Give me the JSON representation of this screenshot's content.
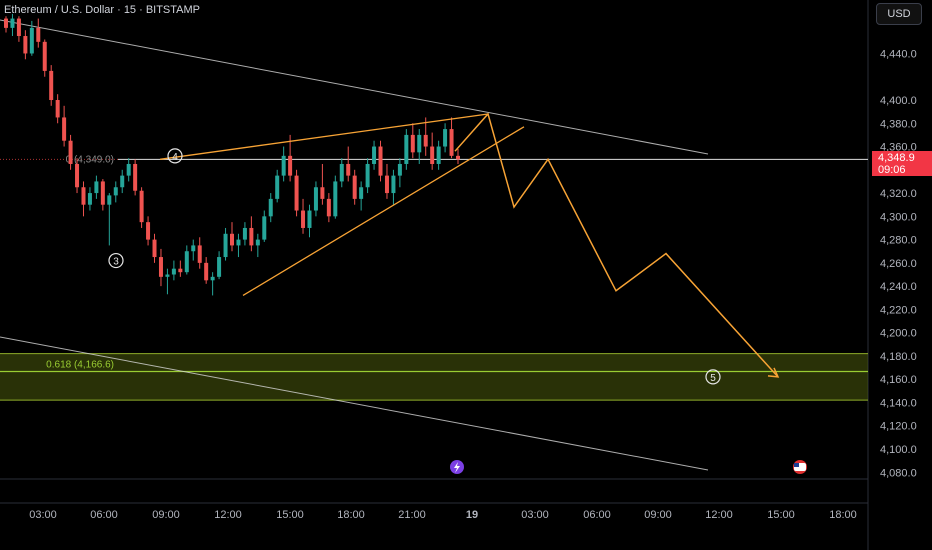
{
  "header": {
    "title": "Ethereum / U.S. Dollar · 15 · BITSTAMP",
    "currency_button": "USD"
  },
  "price_badge": {
    "price": "4,348.9",
    "countdown": "09:06"
  },
  "colors": {
    "up": "#26a69a",
    "down": "#ef5350",
    "projection": "#f7a335",
    "zone": "#5b6b12",
    "zone_line": "#9acd32",
    "trendline": "#d8d8d8",
    "badge": "#f23645"
  },
  "chart_data": {
    "type": "candlestick",
    "symbol": "Ethereum / U.S. Dollar",
    "interval": "15",
    "exchange": "BITSTAMP",
    "ylim": [
      4073,
      4475
    ],
    "y_ticks": [
      4080.0,
      4100.0,
      4120.0,
      4140.0,
      4160.0,
      4180.0,
      4200.0,
      4220.0,
      4240.0,
      4260.0,
      4280.0,
      4300.0,
      4320.0,
      4340.0,
      4360.0,
      4380.0,
      4400.0,
      4440.0
    ],
    "x_ticks": [
      "03:00",
      "06:00",
      "09:00",
      "12:00",
      "15:00",
      "18:00",
      "21:00",
      "19",
      "03:00",
      "06:00",
      "09:00",
      "12:00",
      "15:00",
      "18:00"
    ],
    "candles": [
      [
        4470,
        4472,
        4458,
        4462
      ],
      [
        4462,
        4474,
        4455,
        4470
      ],
      [
        4470,
        4472,
        4450,
        4455
      ],
      [
        4455,
        4460,
        4435,
        4440
      ],
      [
        4440,
        4468,
        4438,
        4462
      ],
      [
        4462,
        4470,
        4445,
        4450
      ],
      [
        4450,
        4452,
        4420,
        4425
      ],
      [
        4425,
        4430,
        4395,
        4400
      ],
      [
        4400,
        4405,
        4380,
        4385
      ],
      [
        4385,
        4395,
        4360,
        4365
      ],
      [
        4365,
        4370,
        4340,
        4345
      ],
      [
        4345,
        4350,
        4320,
        4325
      ],
      [
        4325,
        4330,
        4300,
        4310
      ],
      [
        4310,
        4325,
        4305,
        4320
      ],
      [
        4320,
        4335,
        4315,
        4330
      ],
      [
        4330,
        4332,
        4305,
        4310
      ],
      [
        4310,
        4320,
        4275,
        4318
      ],
      [
        4318,
        4330,
        4312,
        4325
      ],
      [
        4325,
        4340,
        4320,
        4335
      ],
      [
        4335,
        4350,
        4330,
        4345
      ],
      [
        4345,
        4349,
        4318,
        4322
      ],
      [
        4322,
        4325,
        4290,
        4295
      ],
      [
        4295,
        4300,
        4275,
        4280
      ],
      [
        4280,
        4285,
        4260,
        4265
      ],
      [
        4265,
        4272,
        4240,
        4248
      ],
      [
        4248,
        4255,
        4233,
        4250
      ],
      [
        4250,
        4262,
        4245,
        4255
      ],
      [
        4255,
        4262,
        4248,
        4252
      ],
      [
        4252,
        4275,
        4250,
        4270
      ],
      [
        4270,
        4280,
        4262,
        4275
      ],
      [
        4275,
        4282,
        4255,
        4260
      ],
      [
        4260,
        4265,
        4242,
        4245
      ],
      [
        4245,
        4252,
        4232,
        4248
      ],
      [
        4248,
        4270,
        4246,
        4265
      ],
      [
        4265,
        4290,
        4262,
        4285
      ],
      [
        4285,
        4295,
        4270,
        4275
      ],
      [
        4275,
        4285,
        4265,
        4280
      ],
      [
        4280,
        4295,
        4275,
        4290
      ],
      [
        4290,
        4300,
        4270,
        4275
      ],
      [
        4275,
        4285,
        4265,
        4280
      ],
      [
        4280,
        4305,
        4278,
        4300
      ],
      [
        4300,
        4320,
        4295,
        4315
      ],
      [
        4315,
        4340,
        4312,
        4335
      ],
      [
        4335,
        4360,
        4330,
        4352
      ],
      [
        4352,
        4370,
        4330,
        4335
      ],
      [
        4335,
        4340,
        4300,
        4305
      ],
      [
        4305,
        4315,
        4285,
        4290
      ],
      [
        4290,
        4310,
        4282,
        4305
      ],
      [
        4305,
        4330,
        4300,
        4325
      ],
      [
        4325,
        4345,
        4310,
        4315
      ],
      [
        4315,
        4320,
        4295,
        4300
      ],
      [
        4300,
        4335,
        4298,
        4330
      ],
      [
        4330,
        4350,
        4325,
        4345
      ],
      [
        4345,
        4360,
        4330,
        4335
      ],
      [
        4335,
        4340,
        4310,
        4315
      ],
      [
        4315,
        4330,
        4305,
        4325
      ],
      [
        4325,
        4350,
        4320,
        4345
      ],
      [
        4345,
        4365,
        4340,
        4360
      ],
      [
        4360,
        4365,
        4330,
        4335
      ],
      [
        4335,
        4345,
        4315,
        4320
      ],
      [
        4320,
        4340,
        4310,
        4335
      ],
      [
        4335,
        4350,
        4325,
        4345
      ],
      [
        4345,
        4375,
        4340,
        4370
      ],
      [
        4370,
        4380,
        4350,
        4355
      ],
      [
        4355,
        4375,
        4345,
        4370
      ],
      [
        4370,
        4385,
        4352,
        4360
      ],
      [
        4360,
        4372,
        4340,
        4345
      ],
      [
        4345,
        4365,
        4340,
        4360
      ],
      [
        4360,
        4380,
        4355,
        4375
      ],
      [
        4375,
        4385,
        4350,
        4352
      ],
      [
        4352,
        4358,
        4345,
        4349
      ]
    ],
    "current_price": 4348.9,
    "price_line": 4349.0,
    "fib_levels": [
      {
        "label": "0 (4,349.0)",
        "value": 4349.0
      },
      {
        "label": "0.618 (4,166.6)",
        "value": 4166.6
      }
    ],
    "target_zone": [
      4142,
      4182
    ],
    "wave_labels": [
      {
        "label": "④",
        "price": 4352
      },
      {
        "label": "③",
        "price": 4262
      },
      {
        "label": "⑤",
        "price": 4162
      }
    ],
    "projection_path": [
      4388,
      4308,
      4349,
      4236,
      4268,
      4162
    ]
  }
}
